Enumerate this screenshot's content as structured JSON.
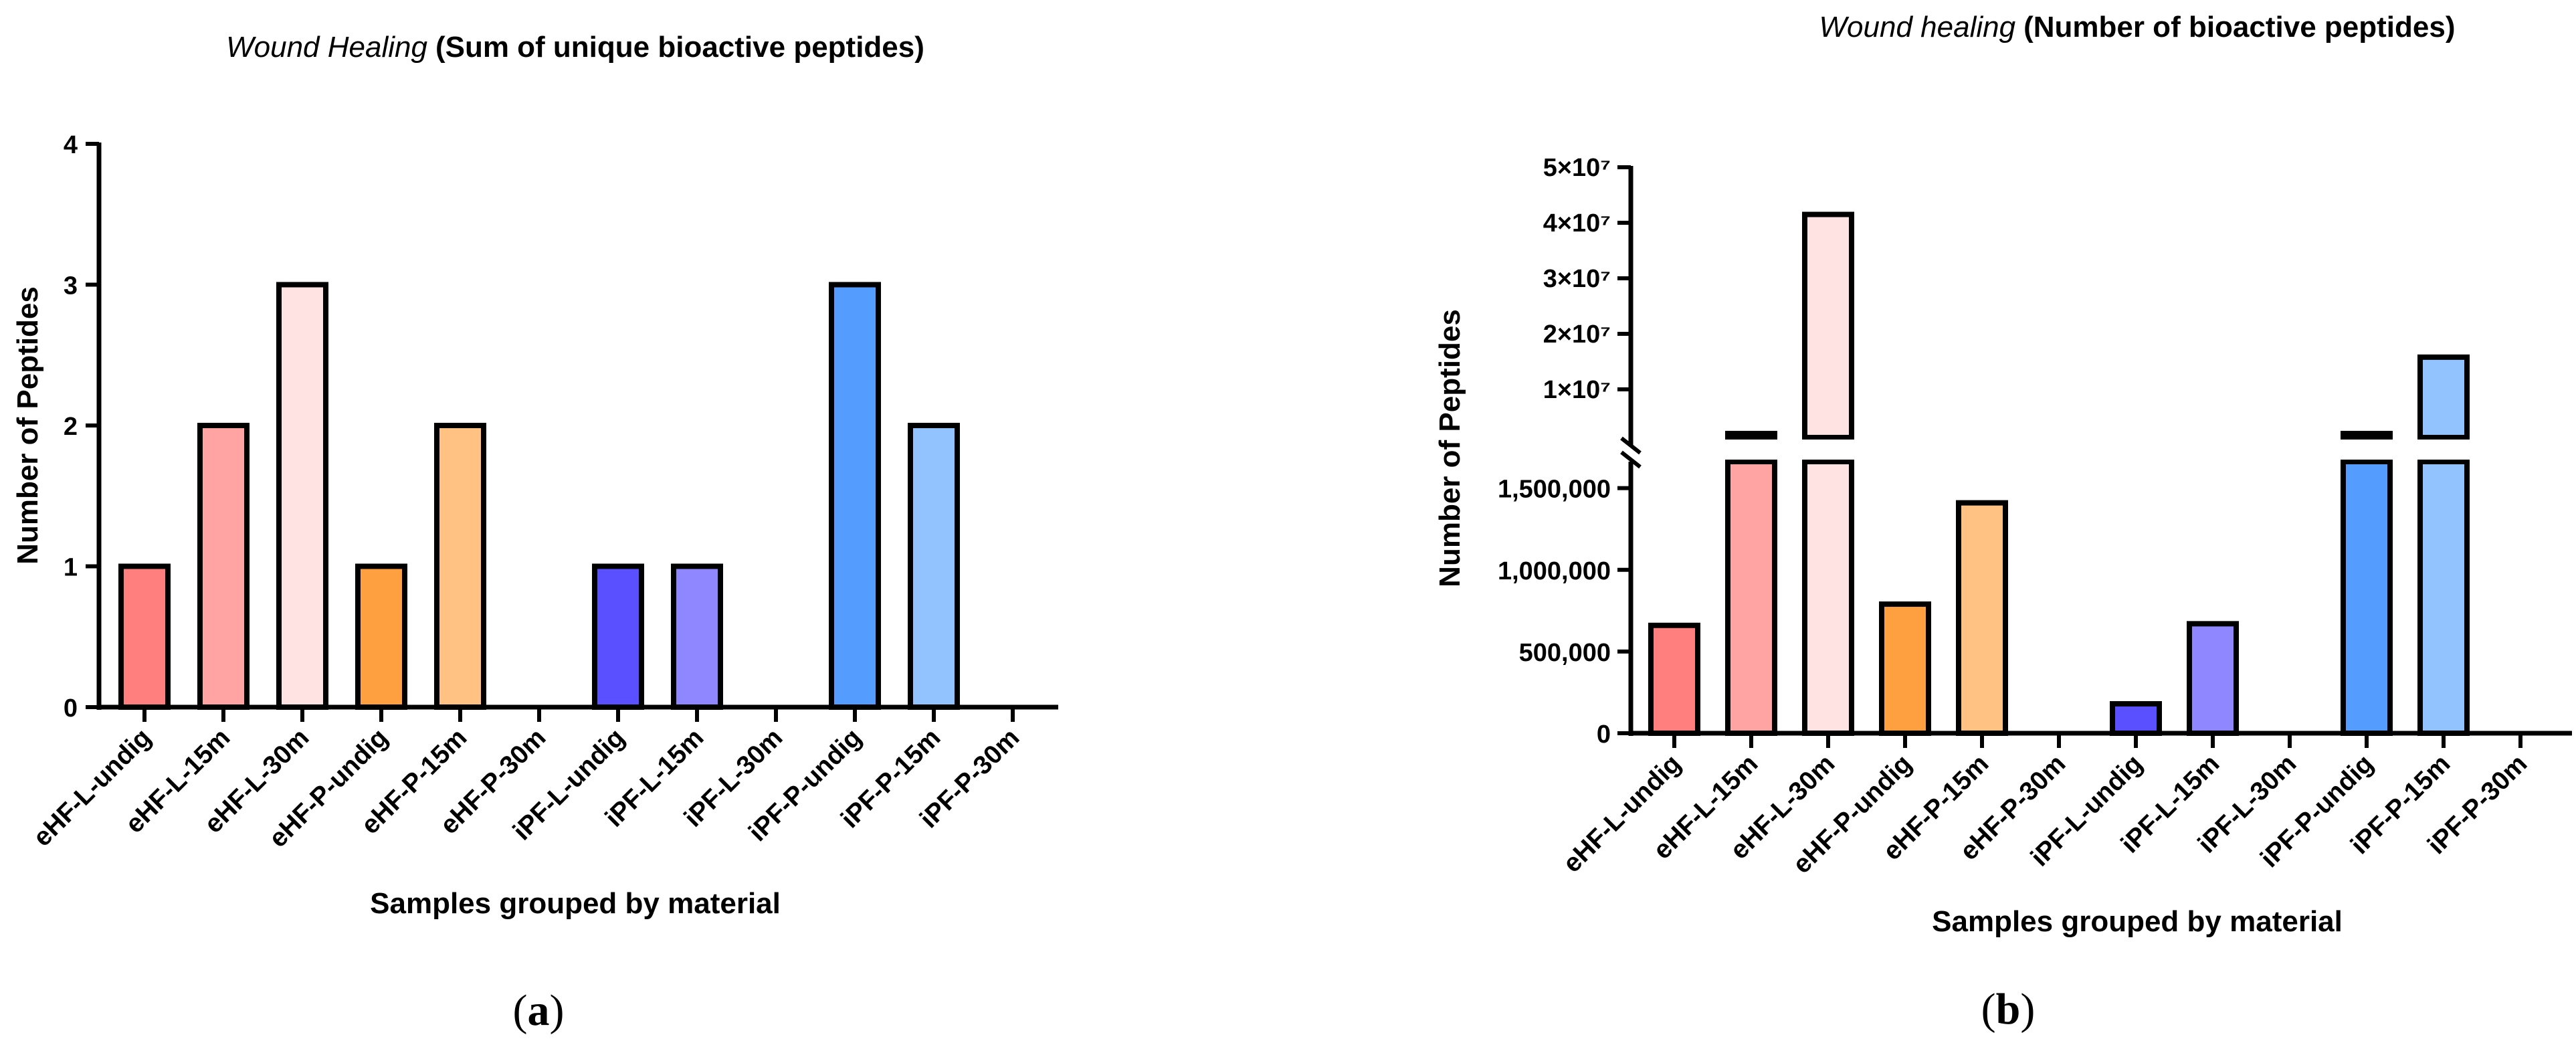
{
  "chart_data": [
    {
      "type": "bar",
      "panel_label": "(a)",
      "panel_letter": "a",
      "title_italic": "Wound Healing",
      "title_bold": "(Sum of unique bioactive peptides)",
      "xlabel": "Samples grouped by material",
      "ylabel": "Number of Peptides",
      "ylim": [
        0,
        4
      ],
      "yticks": [
        0,
        1,
        2,
        3,
        4
      ],
      "ytick_labels": [
        "0",
        "1",
        "2",
        "3",
        "4"
      ],
      "categories": [
        "eHF-L-undig",
        "eHF-L-15m",
        "eHF-L-30m",
        "eHF-P-undig",
        "eHF-P-15m",
        "eHF-P-30m",
        "iPF-L-undig",
        "iPF-L-15m",
        "iPF-L-30m",
        "iPF-P-undig",
        "iPF-P-15m",
        "iPF-P-30m"
      ],
      "values": [
        1,
        2,
        3,
        1,
        2,
        0,
        1,
        1,
        0,
        3,
        2,
        0
      ],
      "colors": [
        "#ff7f7f",
        "#ffa3a3",
        "#ffe3e3",
        "#ffa040",
        "#ffc283",
        "#ffffff",
        "#5a50ff",
        "#8f87ff",
        "#ffffff",
        "#549dff",
        "#93c3ff",
        "#ffffff"
      ]
    },
    {
      "type": "bar",
      "panel_label": "(b)",
      "panel_letter": "b",
      "title_italic": "Wound healing",
      "title_bold": "(Number of bioactive peptides)",
      "xlabel": "Samples grouped by material",
      "ylabel": "Number of Peptides",
      "axis_break": true,
      "lower_ylim": [
        0,
        1650000
      ],
      "lower_yticks": [
        0,
        500000,
        1000000,
        1500000
      ],
      "lower_ytick_labels": [
        "0",
        "500,000",
        "1,000,000",
        "1,500,000"
      ],
      "upper_ylim": [
        0,
        50000000
      ],
      "upper_yticks": [
        10000000,
        20000000,
        30000000,
        40000000,
        50000000
      ],
      "upper_ytick_labels": [
        "1×10⁷",
        "2×10⁷",
        "3×10⁷",
        "4×10⁷",
        "5×10⁷"
      ],
      "categories": [
        "eHF-L-undig",
        "eHF-L-15m",
        "eHF-L-30m",
        "eHF-P-undig",
        "eHF-P-15m",
        "eHF-P-30m",
        "iPF-L-undig",
        "iPF-L-15m",
        "iPF-L-30m",
        "iPF-P-undig",
        "iPF-P-15m",
        "iPF-P-30m"
      ],
      "values": [
        660000,
        2000000,
        41500000,
        790000,
        1410000,
        0,
        180000,
        670000,
        0,
        2000000,
        15800000,
        0
      ],
      "colors": [
        "#ff7f7f",
        "#ffa3a3",
        "#ffe3e3",
        "#ffa040",
        "#ffc283",
        "#ffffff",
        "#5a50ff",
        "#8f87ff",
        "#ffffff",
        "#549dff",
        "#93c3ff",
        "#ffffff"
      ]
    }
  ]
}
